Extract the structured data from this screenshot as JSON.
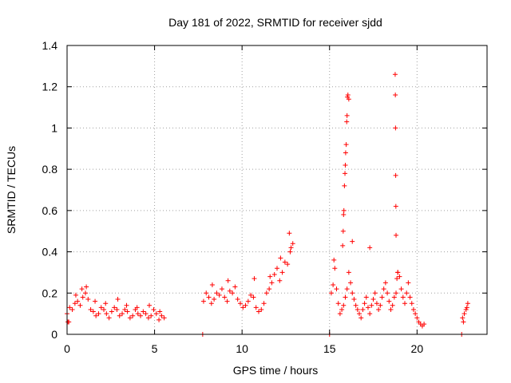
{
  "chart_data": {
    "type": "scatter",
    "title": "Day 181 of 2022, SRMTID for receiver sjdd",
    "xlabel": "GPS time / hours",
    "ylabel": "SRMTID / TECUs",
    "xlim": [
      0,
      24
    ],
    "ylim": [
      0,
      1.4
    ],
    "xticks": [
      0,
      5,
      10,
      15,
      20
    ],
    "xtick_labels": [
      "0",
      "5",
      "10",
      "15",
      "20"
    ],
    "yticks": [
      0,
      0.2,
      0.4,
      0.6,
      0.8,
      1.0,
      1.2,
      1.4
    ],
    "ytick_labels": [
      "0",
      "0.2",
      "0.4",
      "0.6",
      "0.8",
      "1",
      "1.2",
      "1.4"
    ],
    "grid": true,
    "marker": "plus",
    "color": "#ff0000",
    "series": [
      {
        "name": "SRMTID",
        "x": [
          0.0,
          0.15,
          0.3,
          0.45,
          0.6,
          0.75,
          0.9,
          1.05,
          1.2,
          1.35,
          1.5,
          1.65,
          1.8,
          1.95,
          2.1,
          2.25,
          2.4,
          2.55,
          2.7,
          2.85,
          3.0,
          3.15,
          3.3,
          3.45,
          3.6,
          3.75,
          3.9,
          4.05,
          4.2,
          4.35,
          4.5,
          4.65,
          4.8,
          4.95,
          5.1,
          5.25,
          5.4,
          5.55,
          0.1,
          0.5,
          0.85,
          1.1,
          1.6,
          2.2,
          2.9,
          3.4,
          4.0,
          4.7,
          5.3,
          7.8,
          7.95,
          8.1,
          8.25,
          8.4,
          8.55,
          8.7,
          8.85,
          9.0,
          9.15,
          9.3,
          9.45,
          9.6,
          9.75,
          9.9,
          10.05,
          10.2,
          10.35,
          10.5,
          10.65,
          10.8,
          10.95,
          11.1,
          11.25,
          11.4,
          11.55,
          11.7,
          11.85,
          12.0,
          12.15,
          12.3,
          12.45,
          12.6,
          12.75,
          12.9,
          8.3,
          9.2,
          10.7,
          11.6,
          12.2,
          12.7,
          12.8,
          15.1,
          15.2,
          15.3,
          15.4,
          15.5,
          15.6,
          15.7,
          15.8,
          15.9,
          16.0,
          16.1,
          16.2,
          16.3,
          16.4,
          16.5,
          16.6,
          16.7,
          16.8,
          16.9,
          17.0,
          17.1,
          17.2,
          17.3,
          17.4,
          17.5,
          17.6,
          17.7,
          17.8,
          17.9,
          18.0,
          18.1,
          18.2,
          18.3,
          18.4,
          18.5,
          18.6,
          18.7,
          18.8,
          18.9,
          19.0,
          19.1,
          19.2,
          19.3,
          19.4,
          19.5,
          19.6,
          19.7,
          19.8,
          19.9,
          20.0,
          20.1,
          20.2,
          20.3,
          20.4,
          15.25,
          15.75,
          15.78,
          15.8,
          15.82,
          15.85,
          15.88,
          15.9,
          15.92,
          15.95,
          15.98,
          16.0,
          16.02,
          16.05,
          16.1,
          16.3,
          17.3,
          18.75,
          18.76,
          18.77,
          18.78,
          18.79,
          18.8,
          18.85,
          18.9,
          22.6,
          22.7,
          22.8,
          22.9,
          22.65,
          22.85,
          0.05,
          7.75,
          15.0,
          22.55
        ],
        "y": [
          0.1,
          0.13,
          0.12,
          0.15,
          0.16,
          0.14,
          0.18,
          0.2,
          0.17,
          0.12,
          0.11,
          0.09,
          0.1,
          0.13,
          0.12,
          0.1,
          0.08,
          0.11,
          0.13,
          0.12,
          0.09,
          0.1,
          0.12,
          0.11,
          0.08,
          0.09,
          0.12,
          0.1,
          0.09,
          0.11,
          0.1,
          0.08,
          0.09,
          0.12,
          0.1,
          0.07,
          0.09,
          0.08,
          0.06,
          0.19,
          0.22,
          0.23,
          0.16,
          0.15,
          0.17,
          0.14,
          0.13,
          0.14,
          0.11,
          0.16,
          0.2,
          0.18,
          0.15,
          0.17,
          0.2,
          0.19,
          0.22,
          0.18,
          0.16,
          0.21,
          0.2,
          0.23,
          0.17,
          0.15,
          0.13,
          0.14,
          0.16,
          0.19,
          0.18,
          0.13,
          0.11,
          0.12,
          0.15,
          0.2,
          0.22,
          0.25,
          0.29,
          0.32,
          0.26,
          0.3,
          0.35,
          0.34,
          0.4,
          0.44,
          0.24,
          0.26,
          0.27,
          0.28,
          0.37,
          0.49,
          0.42,
          0.2,
          0.24,
          0.32,
          0.22,
          0.15,
          0.1,
          0.12,
          0.14,
          0.18,
          0.22,
          0.3,
          0.25,
          0.2,
          0.17,
          0.14,
          0.12,
          0.1,
          0.08,
          0.12,
          0.15,
          0.18,
          0.13,
          0.1,
          0.14,
          0.17,
          0.2,
          0.15,
          0.12,
          0.14,
          0.18,
          0.22,
          0.25,
          0.2,
          0.16,
          0.12,
          0.14,
          0.18,
          0.2,
          0.3,
          0.28,
          0.22,
          0.18,
          0.15,
          0.2,
          0.25,
          0.18,
          0.15,
          0.12,
          0.1,
          0.08,
          0.06,
          0.05,
          0.04,
          0.05,
          0.36,
          0.43,
          0.5,
          0.58,
          0.6,
          0.72,
          0.78,
          0.82,
          0.88,
          0.92,
          1.03,
          1.06,
          1.15,
          1.16,
          1.14,
          0.45,
          0.42,
          1.26,
          1.16,
          1.0,
          0.77,
          0.62,
          0.48,
          0.27,
          0.3,
          0.08,
          0.1,
          0.12,
          0.15,
          0.06,
          0.13,
          0.06,
          0.0,
          0.0,
          0.0
        ]
      }
    ]
  }
}
